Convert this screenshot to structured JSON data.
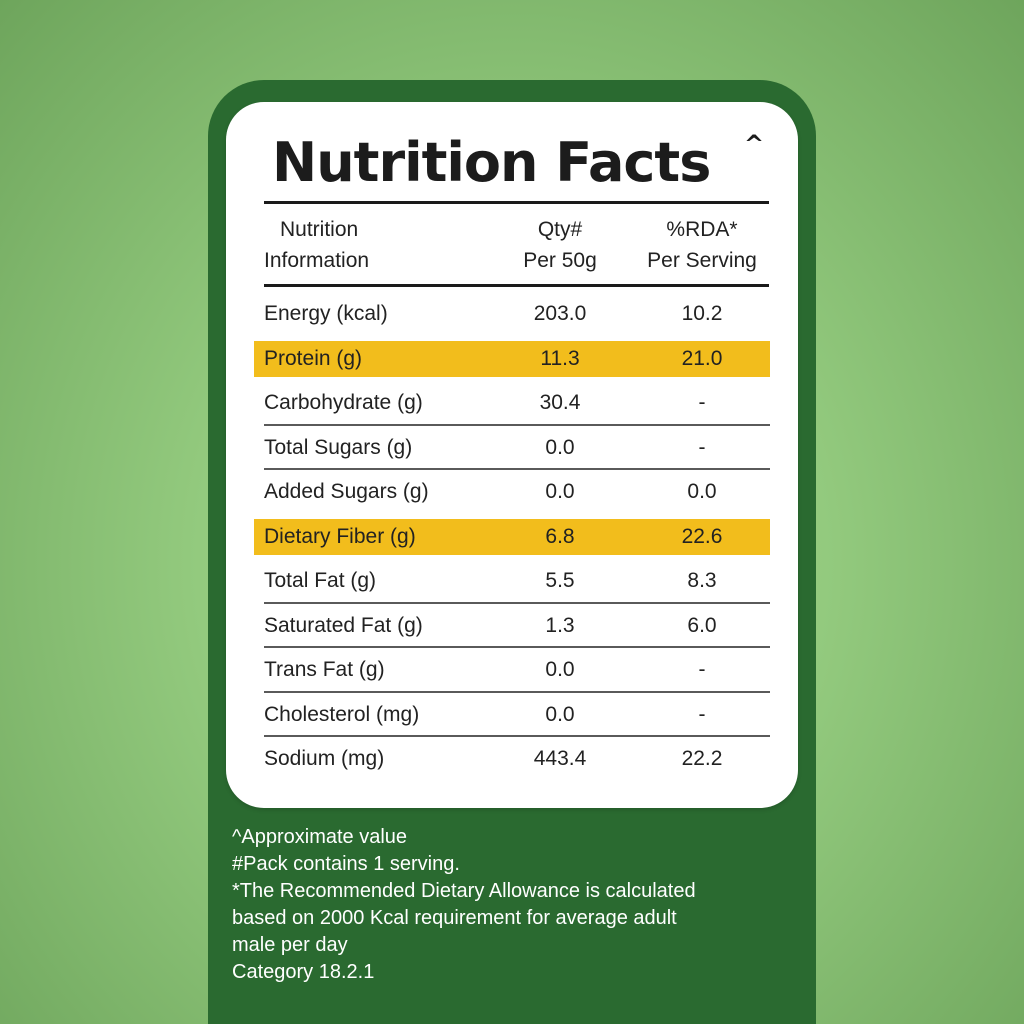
{
  "label": {
    "title": "Nutrition Facts",
    "title_mark": "^",
    "header": {
      "col1_line1": "Nutrition",
      "col1_line2": "Information",
      "col2_line1": "Qty#",
      "col2_line2": "Per 50g",
      "col3_line1": "%RDA*",
      "col3_line2": "Per Serving"
    },
    "rows": [
      {
        "name": "Energy (kcal)",
        "qty": "203.0",
        "rda": "10.2",
        "highlight": false
      },
      {
        "name": "Protein (g)",
        "qty": "11.3",
        "rda": "21.0",
        "highlight": true
      },
      {
        "name": "Carbohydrate (g)",
        "qty": "30.4",
        "rda": "-",
        "highlight": false
      },
      {
        "name": "Total Sugars (g)",
        "qty": "0.0",
        "rda": "-",
        "highlight": false
      },
      {
        "name": "Added Sugars (g)",
        "qty": "0.0",
        "rda": "0.0",
        "highlight": false
      },
      {
        "name": "Dietary Fiber (g)",
        "qty": "6.8",
        "rda": "22.6",
        "highlight": true
      },
      {
        "name": "Total Fat (g)",
        "qty": "5.5",
        "rda": "8.3",
        "highlight": false
      },
      {
        "name": "Saturated Fat (g)",
        "qty": "1.3",
        "rda": "6.0",
        "highlight": false
      },
      {
        "name": "Trans Fat (g)",
        "qty": "0.0",
        "rda": "-",
        "highlight": false
      },
      {
        "name": "Cholesterol (mg)",
        "qty": "0.0",
        "rda": "-",
        "highlight": false
      },
      {
        "name": "Sodium (mg)",
        "qty": "443.4",
        "rda": "22.2",
        "highlight": false
      }
    ]
  },
  "footnotes": [
    "^Approximate value",
    "#Pack contains 1 serving.",
    "*The Recommended Dietary Allowance is calculated",
    "based on 2000 Kcal requirement for average adult",
    "male per day",
    "Category 18.2.1"
  ],
  "colors": {
    "background": "#92c97d",
    "panel": "#2a6a30",
    "highlight": "#f2bd1c",
    "card": "#ffffff"
  }
}
